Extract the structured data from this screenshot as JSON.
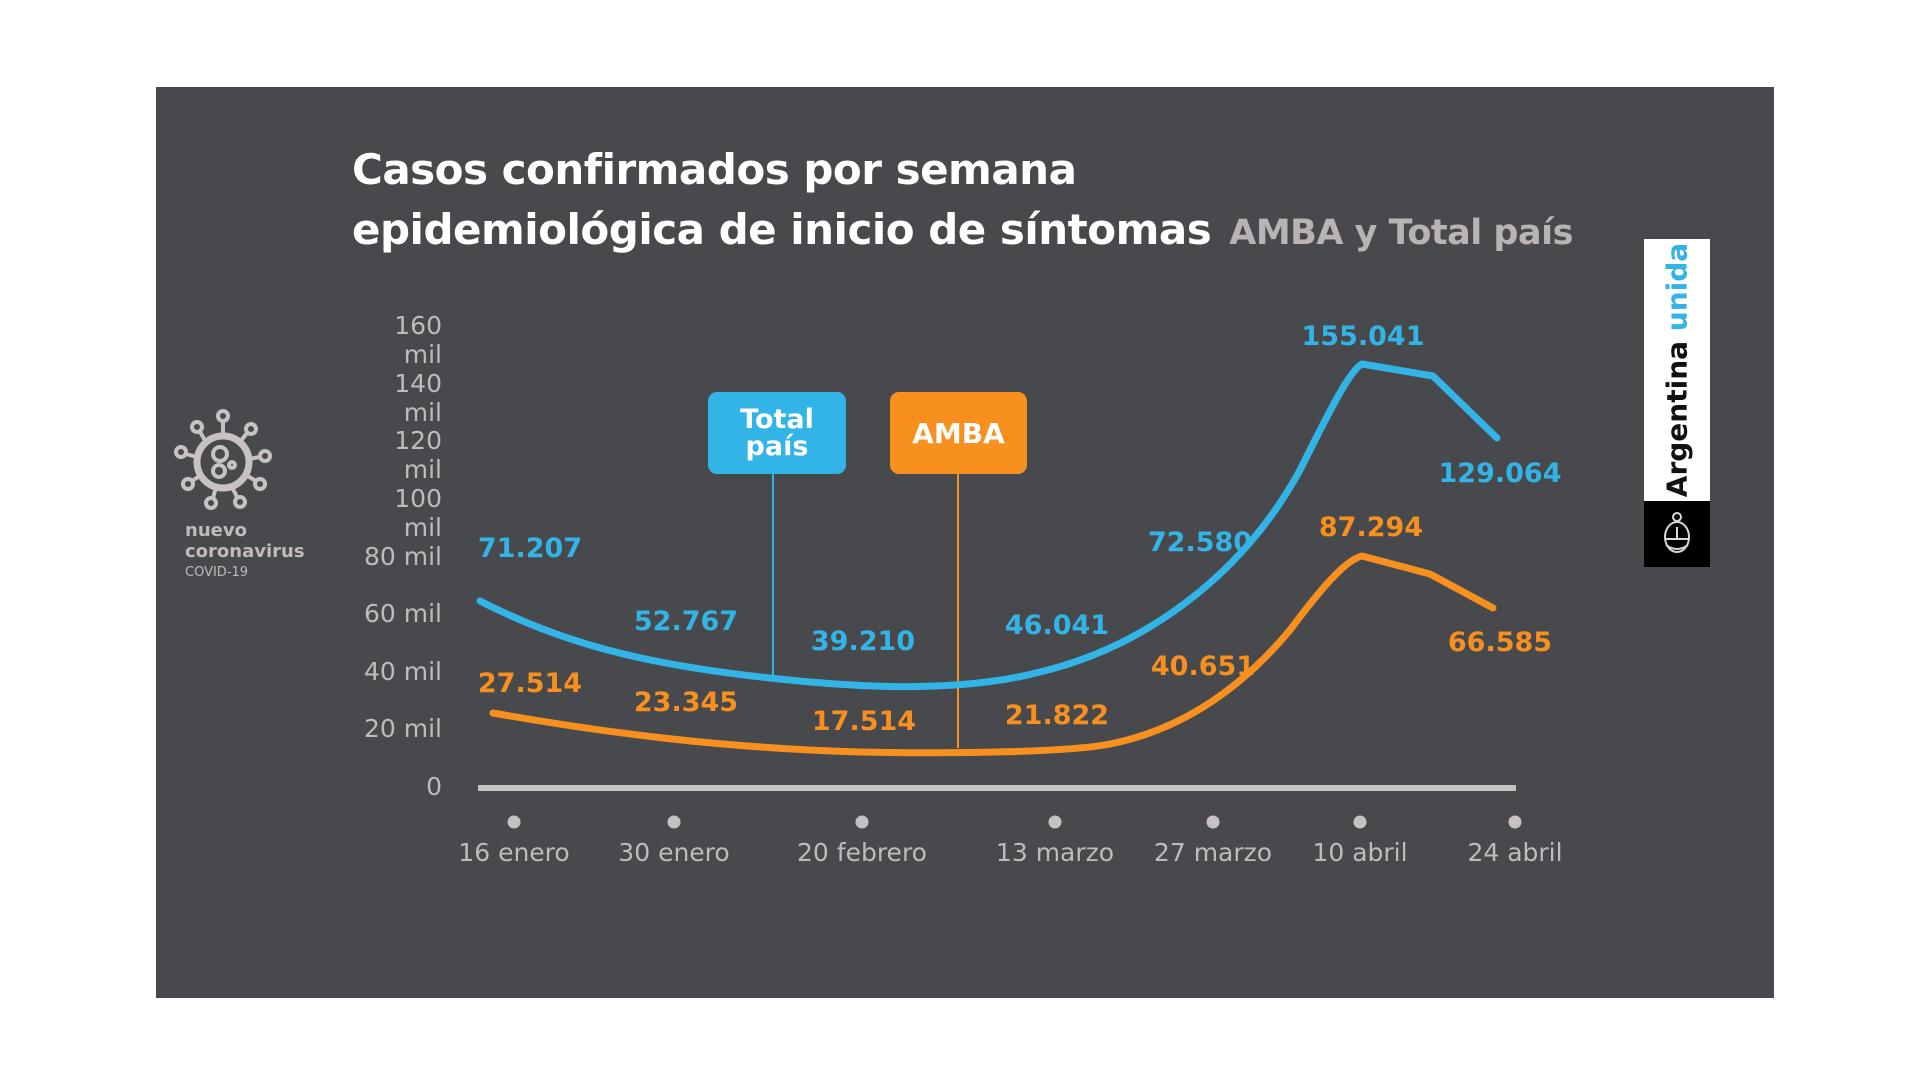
{
  "colors": {
    "background": "#48494d",
    "total_pais": "#33b4e6",
    "amba": "#f7901e",
    "axis": "#c7c1c4",
    "text_muted": "#c0babd"
  },
  "title": {
    "line1": "Casos confirmados por semana",
    "line2": "epidemiológica de inicio de síntomas",
    "subtitle": "AMBA y Total país"
  },
  "side_logo": {
    "icon": "virus-icon",
    "line1": "nuevo",
    "line2": "coronavirus",
    "line3": "COVID-19"
  },
  "brand": {
    "text_main": "Argentina",
    "text_accent": "unida",
    "icon": "coat-of-arms-icon"
  },
  "legend": [
    {
      "name": "Total país",
      "line1": "Total",
      "line2": "país",
      "color": "#33b4e6"
    },
    {
      "name": "AMBA",
      "line1": "AMBA",
      "line2": "",
      "color": "#f7901e"
    }
  ],
  "chart_data": {
    "type": "line",
    "title": "Casos confirmados por semana epidemiológica de inicio de síntomas",
    "subtitle": "AMBA y Total país",
    "xlabel": "",
    "ylabel": "",
    "ylim": [
      0,
      160000
    ],
    "yticks": [
      "0",
      "20 mil",
      "40 mil",
      "60 mil",
      "80 mil",
      "100 mil",
      "120 mil",
      "140 mil",
      "160 mil"
    ],
    "ytick_values": [
      0,
      20000,
      40000,
      60000,
      80000,
      100000,
      120000,
      140000,
      160000
    ],
    "categories": [
      "16 enero",
      "30 enero",
      "20 febrero",
      "13 marzo",
      "27 marzo",
      "10 abril",
      "24 abril"
    ],
    "grid": false,
    "legend_position": "top-center",
    "series": [
      {
        "name": "Total país",
        "color": "#33b4e6",
        "values": [
          71207,
          52767,
          39210,
          46041,
          72580,
          155041,
          129064
        ],
        "labels": [
          "71.207",
          "52.767",
          "39.210",
          "46.041",
          "72.580",
          "155.041",
          "129.064"
        ]
      },
      {
        "name": "AMBA",
        "color": "#f7901e",
        "values": [
          27514,
          23345,
          17514,
          21822,
          40651,
          87294,
          66585
        ],
        "labels": [
          "27.514",
          "23.345",
          "17.514",
          "21.822",
          "40.651",
          "87.294",
          "66.585"
        ]
      }
    ]
  }
}
